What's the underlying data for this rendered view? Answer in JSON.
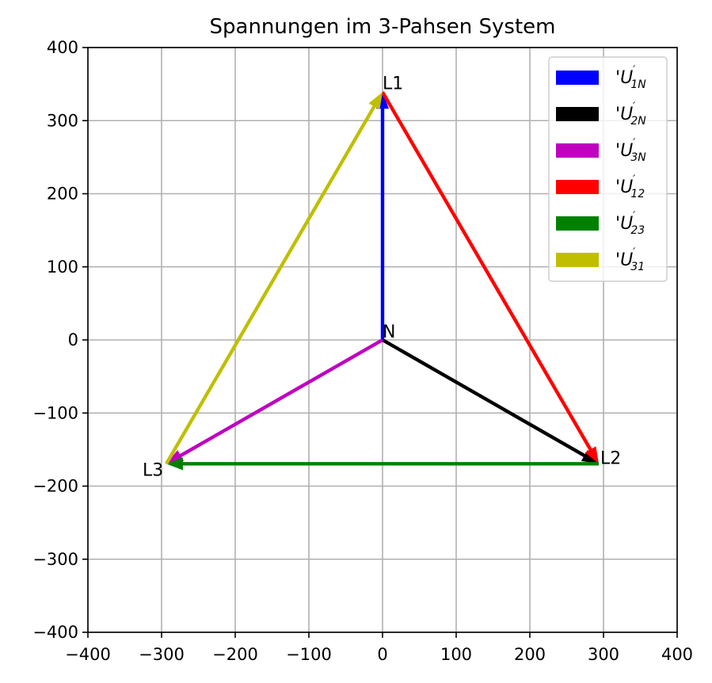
{
  "chart_data": {
    "type": "quiver",
    "title": "Spannungen im 3-Pahsen System",
    "xlabel": "",
    "ylabel": "",
    "xlim": [
      -400,
      400
    ],
    "ylim": [
      -400,
      400
    ],
    "xticks": [
      -400,
      -300,
      -200,
      -100,
      0,
      100,
      200,
      300,
      400
    ],
    "yticks": [
      -400,
      -300,
      -200,
      -100,
      0,
      100,
      200,
      300,
      400
    ],
    "x_tick_labels": [
      "−400",
      "−300",
      "−200",
      "−100",
      "0",
      "100",
      "200",
      "300",
      "400"
    ],
    "y_tick_labels": [
      "−400",
      "−300",
      "−200",
      "−100",
      "0",
      "100",
      "200",
      "300",
      "400"
    ],
    "grid": true,
    "legend_position": "upper right",
    "points": [
      {
        "label": "L1",
        "x": 0,
        "y": 339
      },
      {
        "label": "L2",
        "x": 293.6,
        "y": -169.5
      },
      {
        "label": "L3",
        "x": -293.6,
        "y": -169.5
      },
      {
        "label": "N",
        "x": 0,
        "y": 0
      }
    ],
    "series": [
      {
        "name": "'U'_1N",
        "main": "'U",
        "sub": "1N",
        "color": "#0000ff",
        "x0": 0,
        "y0": 0,
        "x1": 0,
        "y1": 339
      },
      {
        "name": "'U'_2N",
        "main": "'U",
        "sub": "2N",
        "color": "#000000",
        "x0": 0,
        "y0": 0,
        "x1": 293.6,
        "y1": -169.5
      },
      {
        "name": "'U'_3N",
        "main": "'U",
        "sub": "3N",
        "color": "#bf00bf",
        "x0": 0,
        "y0": 0,
        "x1": -293.6,
        "y1": -169.5
      },
      {
        "name": "'U'_12",
        "main": "'U",
        "sub": "12",
        "color": "#ff0000",
        "x0": 0,
        "y0": 339,
        "x1": 293.6,
        "y1": -169.5
      },
      {
        "name": "'U'_23",
        "main": "'U",
        "sub": "23",
        "color": "#008000",
        "x0": 293.6,
        "y0": -169.5,
        "x1": -293.6,
        "y1": -169.5
      },
      {
        "name": "'U'_31",
        "main": "'U",
        "sub": "31",
        "color": "#bfbf00",
        "x0": -293.6,
        "y0": -169.5,
        "x1": 0,
        "y1": 339
      }
    ]
  }
}
